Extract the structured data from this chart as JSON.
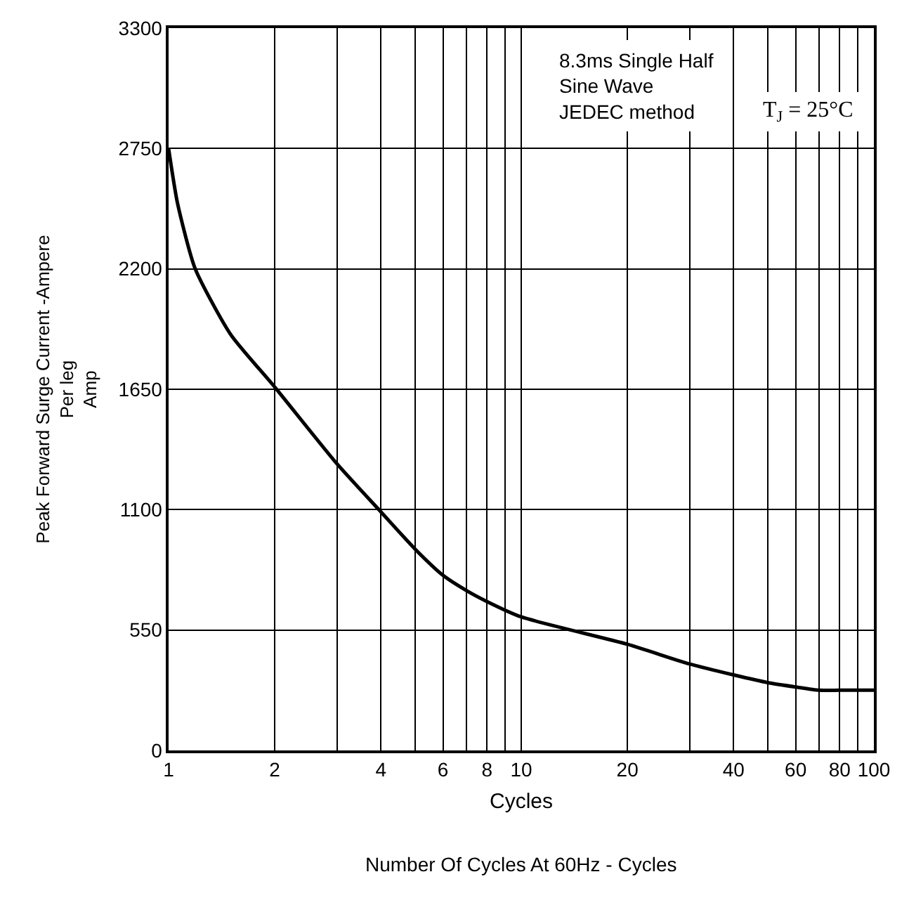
{
  "chart_data": {
    "type": "line",
    "xlabel": "Cycles",
    "ylabel": "Peak Forward Surge Current -Ampere\nPer leg\nAmp",
    "annotations": [
      "8.3ms Single Half\nSine Wave\nJEDEC method",
      "T$_{J}$ = 25°C",
      "Number Of Cycles At 60Hz - Cycles"
    ],
    "x": [
      1,
      1.06,
      1.19,
      1.5,
      2,
      3,
      4,
      5,
      6,
      7,
      8,
      10,
      20,
      30,
      40,
      50,
      60,
      70,
      80,
      100
    ],
    "series": [
      {
        "color": "#000000",
        "values": [
          2750,
          2500,
          2200,
          1900,
          1660,
          1310,
          1090,
          920,
          800,
          730,
          680,
          610,
          485,
          395,
          345,
          310,
          290,
          275,
          275,
          275
        ]
      }
    ],
    "log": "x",
    "xlim": [
      1,
      100
    ],
    "xticks": [
      1,
      2,
      {
        "value": 3,
        "label": null
      },
      4,
      {
        "value": 5,
        "label": null
      },
      6,
      {
        "value": 7,
        "label": null
      },
      8,
      {
        "value": 9,
        "label": null
      },
      10,
      20,
      {
        "value": 30,
        "label": null
      },
      40,
      {
        "value": 50,
        "label": null
      },
      60,
      {
        "value": 70,
        "label": null
      },
      80,
      {
        "value": 90,
        "label": null
      },
      100
    ],
    "ylim": [
      0,
      3300
    ],
    "yticks": [
      0,
      550,
      1100,
      1650,
      2200,
      2750,
      3300
    ],
    "grid": true,
    "marker": "none",
    "line_style": "solid"
  }
}
